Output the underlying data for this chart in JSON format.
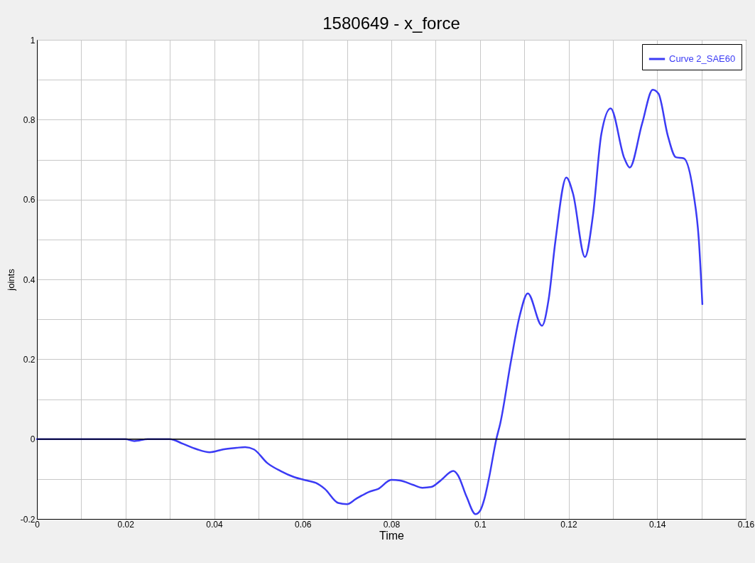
{
  "chart_data": {
    "type": "line",
    "title": "1580649 - x_force",
    "xlabel": "Time",
    "ylabel": "joints",
    "x": [
      0,
      0.01,
      0.02,
      0.022,
      0.025,
      0.03,
      0.033,
      0.036,
      0.039,
      0.042,
      0.045,
      0.047,
      0.049,
      0.052,
      0.055,
      0.058,
      0.061,
      0.063,
      0.065,
      0.068,
      0.07,
      0.072,
      0.075,
      0.077,
      0.08,
      0.082,
      0.085,
      0.087,
      0.089,
      0.091,
      0.094,
      0.095,
      0.097,
      0.099,
      0.1,
      0.101,
      0.102,
      0.1037,
      0.1046,
      0.107,
      0.109,
      0.1108,
      0.114,
      0.1155,
      0.117,
      0.1195,
      0.121,
      0.1237,
      0.1255,
      0.1274,
      0.1295,
      0.1326,
      0.1338,
      0.1366,
      0.139,
      0.1403,
      0.1424,
      0.1442,
      0.146,
      0.1482,
      0.1494,
      0.1502
    ],
    "series": [
      {
        "name": "Curve 2_SAE60",
        "color": "#3b3bf5",
        "values": [
          0,
          0,
          0,
          -0.005,
          0,
          0,
          -0.012,
          -0.025,
          -0.033,
          -0.026,
          -0.022,
          -0.02,
          -0.026,
          -0.06,
          -0.08,
          -0.095,
          -0.104,
          -0.11,
          -0.125,
          -0.16,
          -0.163,
          -0.15,
          -0.132,
          -0.125,
          -0.102,
          -0.104,
          -0.115,
          -0.122,
          -0.12,
          -0.105,
          -0.08,
          -0.09,
          -0.145,
          -0.188,
          -0.18,
          -0.15,
          -0.1,
          0,
          0.04,
          0.195,
          0.31,
          0.365,
          0.284,
          0.35,
          0.493,
          0.655,
          0.615,
          0.456,
          0.56,
          0.764,
          0.828,
          0.703,
          0.68,
          0.79,
          0.875,
          0.865,
          0.76,
          0.706,
          0.703,
          0.615,
          0.5,
          0.338
        ]
      }
    ],
    "xlim": [
      0,
      0.16
    ],
    "ylim": [
      -0.2,
      1
    ],
    "xticks": [
      0,
      {
        "value": 0.01,
        "label": null
      },
      0.02,
      {
        "value": 0.03,
        "label": null
      },
      0.04,
      {
        "value": 0.05,
        "label": null
      },
      0.06,
      {
        "value": 0.07,
        "label": null
      },
      0.08,
      {
        "value": 0.09,
        "label": null
      },
      0.1,
      {
        "value": 0.11,
        "label": null
      },
      0.12,
      {
        "value": 0.13,
        "label": null
      },
      0.14,
      {
        "value": 0.15,
        "label": null
      },
      0.16
    ],
    "yticks": [
      -0.2,
      {
        "value": -0.1,
        "label": null
      },
      0,
      {
        "value": 0.1,
        "label": null
      },
      0.2,
      {
        "value": 0.3,
        "label": null
      },
      0.4,
      {
        "value": 0.5,
        "label": null
      },
      0.6,
      {
        "value": 0.7,
        "label": null
      },
      0.8,
      {
        "value": 0.9,
        "label": null
      },
      1
    ],
    "ref_lines": [
      {
        "axis": "y",
        "value": 0,
        "color": "#000000"
      }
    ],
    "grid": true,
    "legend": "top right",
    "marker": "none",
    "line_style": "solid"
  }
}
